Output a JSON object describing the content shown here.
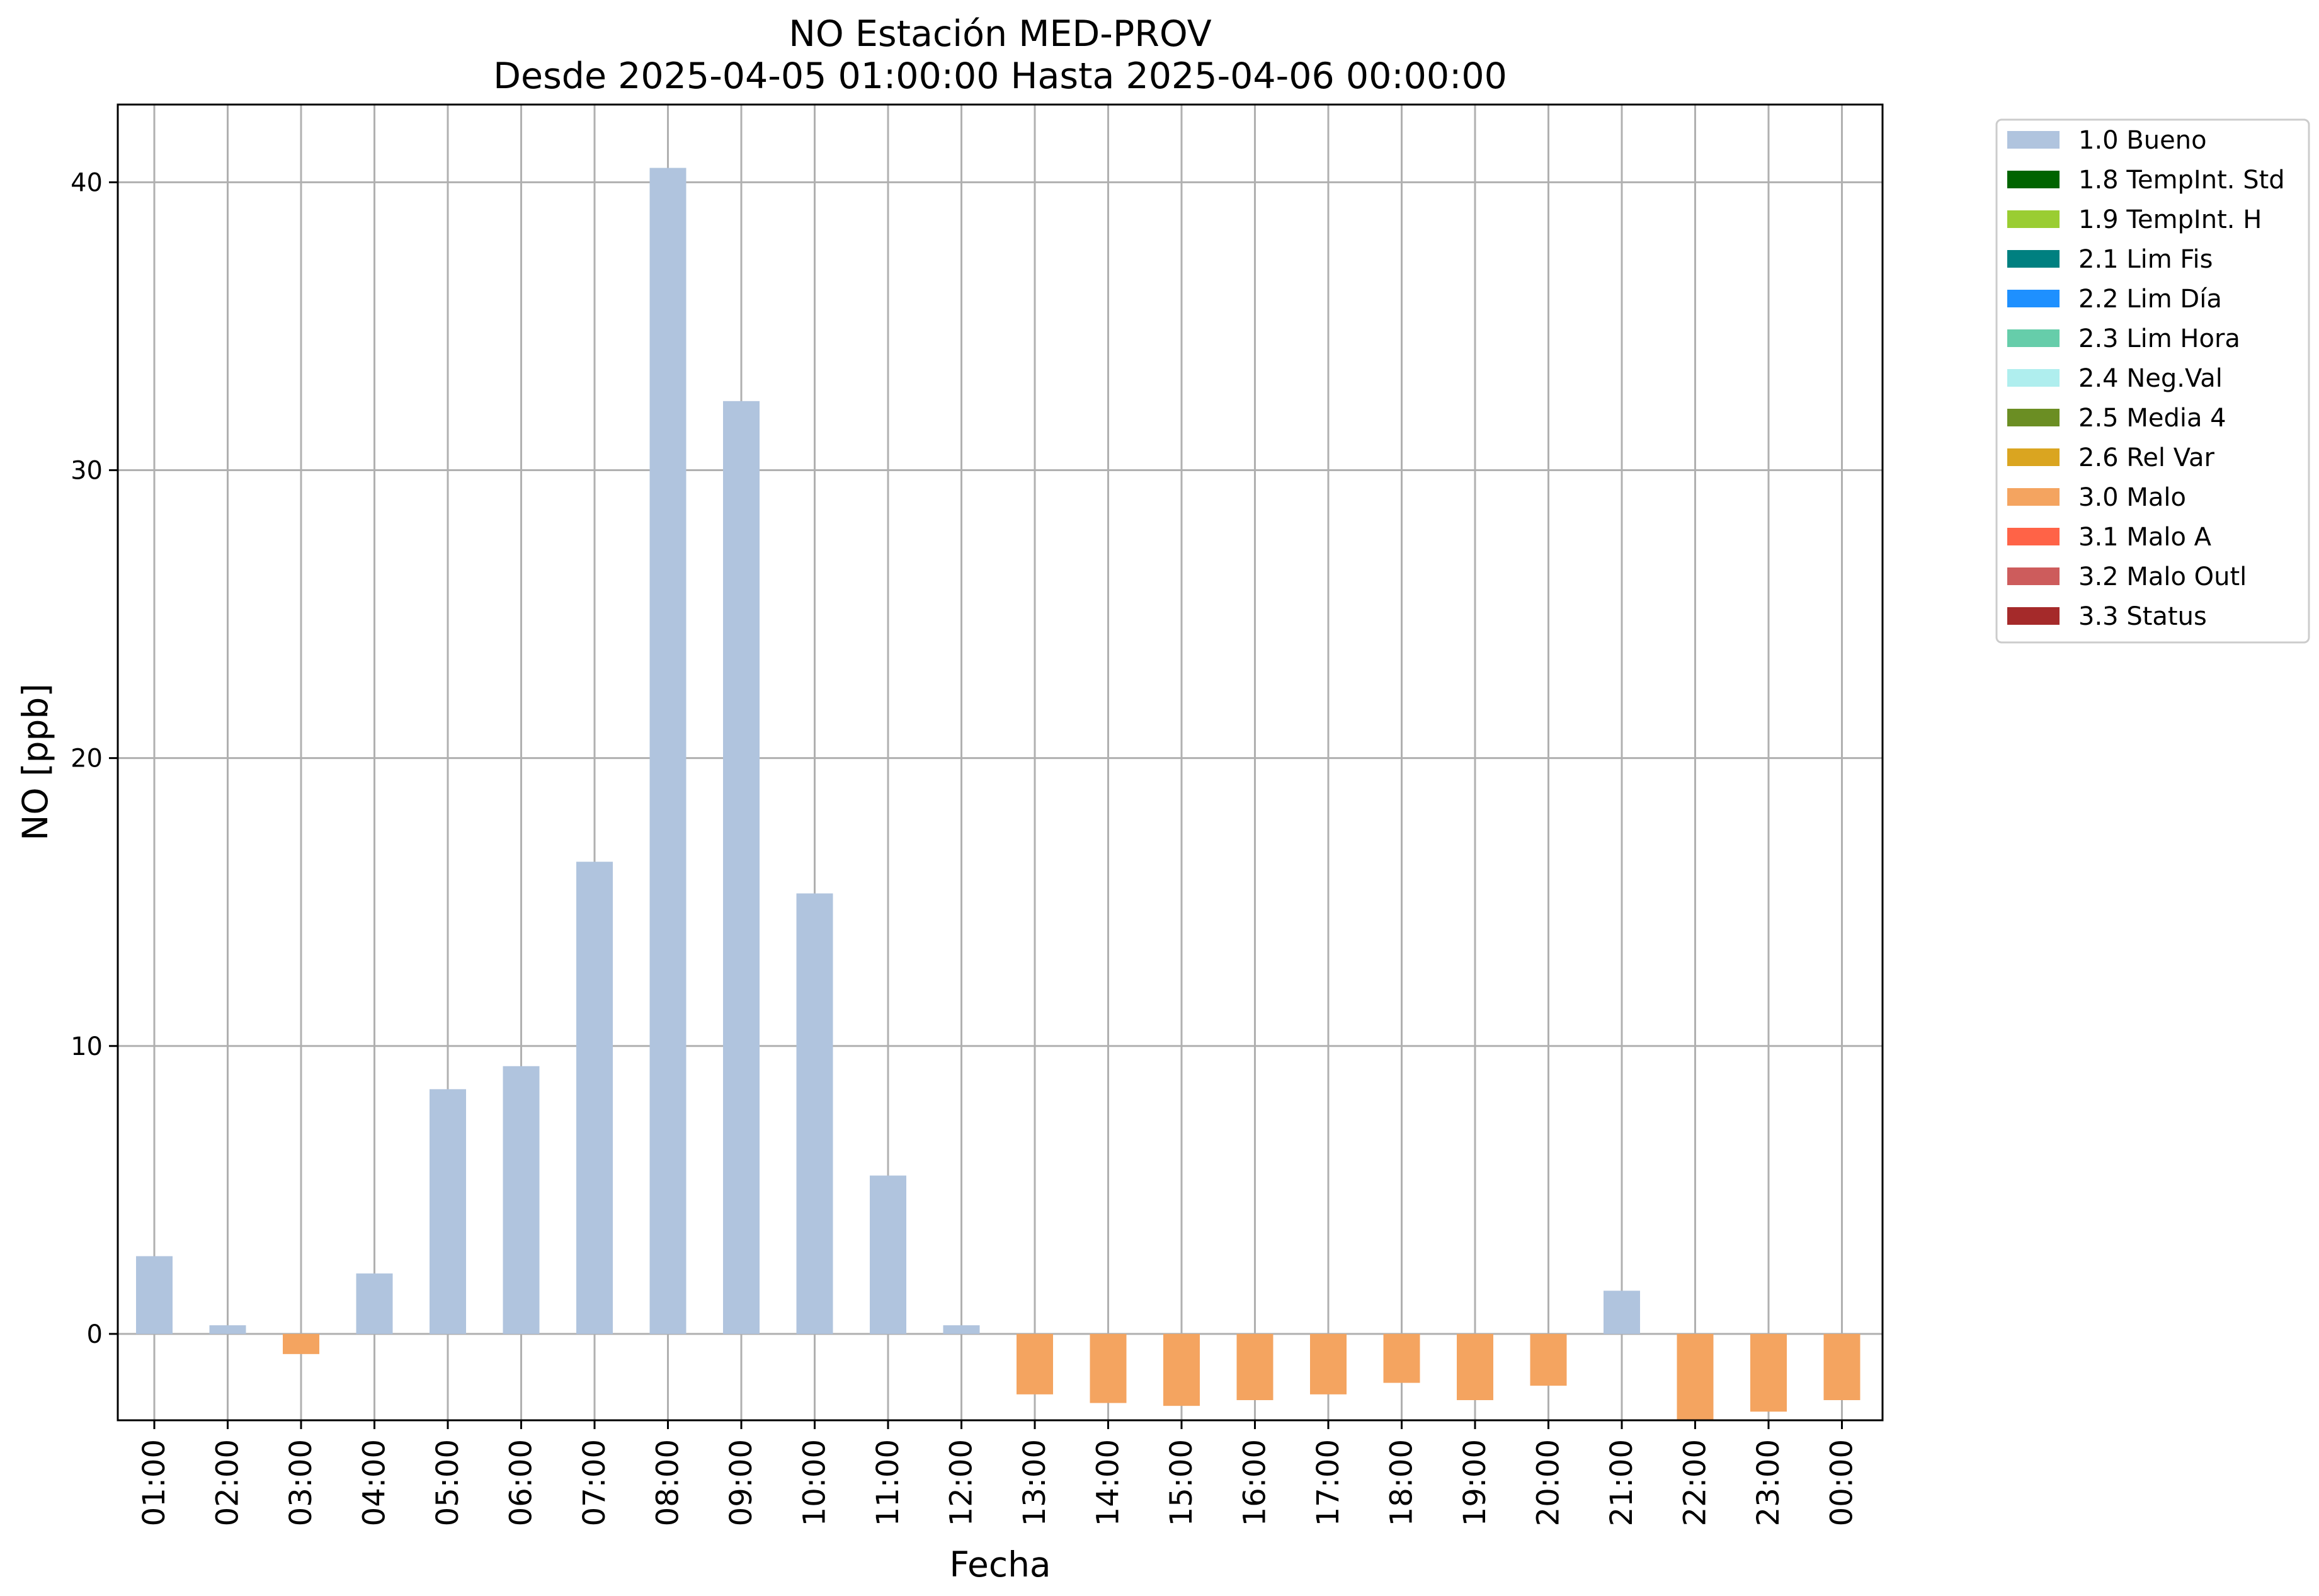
{
  "chart_data": {
    "type": "bar",
    "title": "NO Estación MED-PROV",
    "subtitle": "Desde 2025-04-05 01:00:00 Hasta 2025-04-06 00:00:00",
    "xlabel": "Fecha",
    "ylabel": "NO [ppb]",
    "ylim": [
      -3,
      42.7
    ],
    "yticks": [
      0,
      10,
      20,
      30,
      40
    ],
    "grid": true,
    "legend_position": "outside-top-right",
    "categories": [
      "01:00",
      "02:00",
      "03:00",
      "04:00",
      "05:00",
      "06:00",
      "07:00",
      "08:00",
      "09:00",
      "10:00",
      "11:00",
      "12:00",
      "13:00",
      "14:00",
      "15:00",
      "16:00",
      "17:00",
      "18:00",
      "19:00",
      "20:00",
      "21:00",
      "22:00",
      "23:00",
      "00:00"
    ],
    "values": [
      2.7,
      0.3,
      -0.7,
      2.1,
      8.5,
      9.3,
      16.4,
      40.5,
      32.4,
      15.3,
      5.5,
      0.3,
      -2.1,
      -2.4,
      -2.5,
      -2.3,
      -2.1,
      -1.7,
      -2.3,
      -1.8,
      1.5,
      -3.0,
      -2.7,
      -2.3
    ],
    "flags": [
      "1.0 Bueno",
      "1.0 Bueno",
      "3.0 Malo",
      "1.0 Bueno",
      "1.0 Bueno",
      "1.0 Bueno",
      "1.0 Bueno",
      "1.0 Bueno",
      "1.0 Bueno",
      "1.0 Bueno",
      "1.0 Bueno",
      "1.0 Bueno",
      "3.0 Malo",
      "3.0 Malo",
      "3.0 Malo",
      "3.0 Malo",
      "3.0 Malo",
      "3.0 Malo",
      "3.0 Malo",
      "3.0 Malo",
      "1.0 Bueno",
      "3.0 Malo",
      "3.0 Malo",
      "3.0 Malo"
    ],
    "legend": [
      {
        "label": "1.0 Bueno",
        "color": "#b0c4de"
      },
      {
        "label": "1.8 TempInt. Std",
        "color": "#006400"
      },
      {
        "label": "1.9 TempInt. H",
        "color": "#9acd32"
      },
      {
        "label": "2.1 Lim Fis",
        "color": "#008080"
      },
      {
        "label": "2.2 Lim Día",
        "color": "#1e90ff"
      },
      {
        "label": "2.3 Lim Hora",
        "color": "#66cdaa"
      },
      {
        "label": "2.4 Neg.Val",
        "color": "#afeeee"
      },
      {
        "label": "2.5 Media 4",
        "color": "#6b8e23"
      },
      {
        "label": "2.6 Rel Var",
        "color": "#daa520"
      },
      {
        "label": "3.0 Malo",
        "color": "#f4a460"
      },
      {
        "label": "3.1 Malo A",
        "color": "#ff6347"
      },
      {
        "label": "3.2 Malo Outl",
        "color": "#cd5c5c"
      },
      {
        "label": "3.3 Status",
        "color": "#a52a2a"
      }
    ]
  }
}
